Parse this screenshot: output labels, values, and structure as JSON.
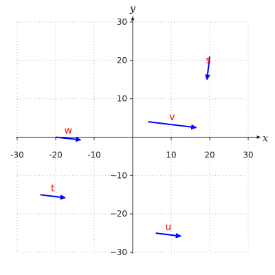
{
  "chart_data": {
    "type": "vector",
    "xlabel": "x",
    "ylabel": "y",
    "xlim": [
      -30,
      30
    ],
    "ylim": [
      -30,
      30
    ],
    "xticks": [
      -30,
      -20,
      -10,
      10,
      20,
      30
    ],
    "yticks": [
      -30,
      -20,
      -10,
      10,
      20,
      30
    ],
    "tick_labels_x": [
      "-30",
      "-20",
      "-10",
      "10",
      "20",
      "30"
    ],
    "tick_labels_y": [
      "−30",
      "−20",
      "−10",
      "10",
      "20",
      "30"
    ],
    "grid": true,
    "vector_color": "#0000ff",
    "label_color": "#ff0000",
    "vectors": [
      {
        "name": "s",
        "from": [
          20,
          21
        ],
        "to": [
          19.3,
          15
        ]
      },
      {
        "name": "v",
        "from": [
          4,
          4
        ],
        "to": [
          16.5,
          2.5
        ]
      },
      {
        "name": "w",
        "from": [
          -20,
          0
        ],
        "to": [
          -13.5,
          -0.7
        ]
      },
      {
        "name": "t",
        "from": [
          -24,
          -15
        ],
        "to": [
          -17.5,
          -15.8
        ]
      },
      {
        "name": "u",
        "from": [
          6,
          -25
        ],
        "to": [
          12.5,
          -25.8
        ]
      }
    ]
  }
}
